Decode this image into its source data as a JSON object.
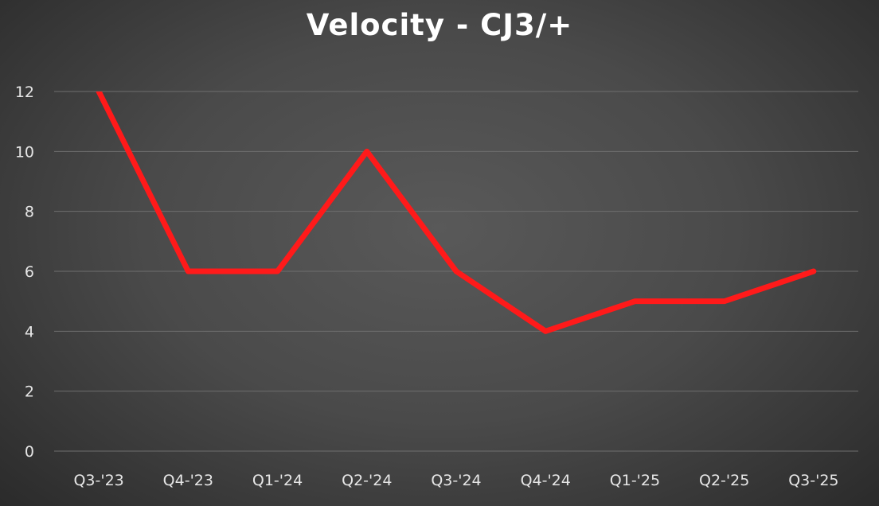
{
  "chart_data": {
    "type": "line",
    "title": "Velocity - CJ3/+",
    "xlabel": "",
    "ylabel": "",
    "categories": [
      "Q3-'23",
      "Q4-'23",
      "Q1-'24",
      "Q2-'24",
      "Q3-'24",
      "Q4-'24",
      "Q1-'25",
      "Q2-'25",
      "Q3-'25"
    ],
    "series": [
      {
        "values": [
          12,
          6,
          6,
          10,
          6,
          4,
          5,
          5,
          6
        ],
        "color": "#ff1a1a"
      }
    ],
    "ylim": [
      0,
      12
    ],
    "yticks": [
      "0",
      "2",
      "4",
      "6",
      "8",
      "10",
      "12"
    ],
    "grid": true,
    "legend": "none"
  }
}
